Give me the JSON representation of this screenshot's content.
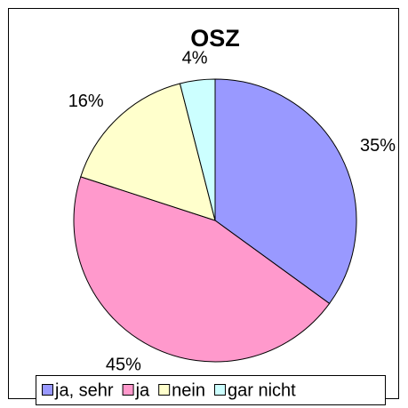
{
  "chart_data": {
    "type": "pie",
    "title": "OSZ",
    "categories": [
      "ja, sehr",
      "ja",
      "nein",
      "gar nicht"
    ],
    "values": [
      35,
      45,
      16,
      4
    ],
    "value_labels": [
      "35%",
      "45%",
      "16%",
      "4%"
    ],
    "colors": [
      "#9999ff",
      "#ff99cc",
      "#ffffcc",
      "#ccffff"
    ],
    "legend": "bottom"
  }
}
